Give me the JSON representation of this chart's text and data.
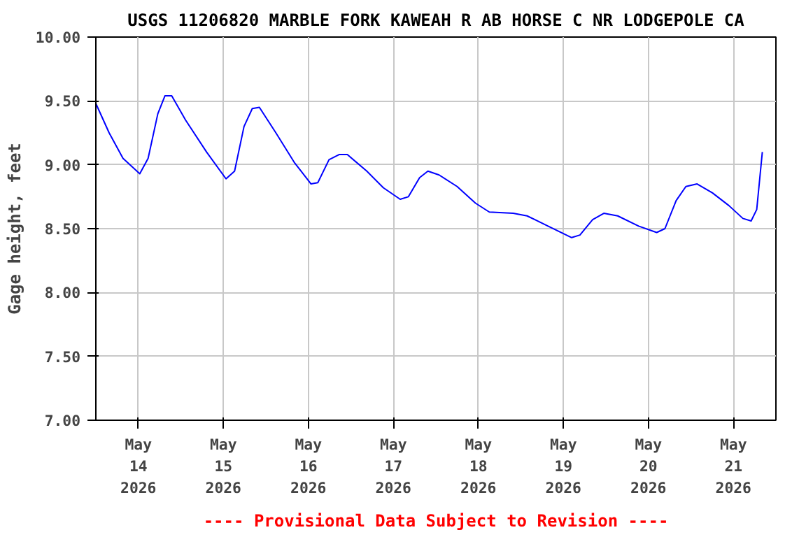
{
  "chart_data": {
    "type": "line",
    "title": "USGS 11206820 MARBLE FORK KAWEAH R AB HORSE C NR LODGEPOLE CA",
    "ylabel": "Gage height, feet",
    "annotations": [
      "---- Provisional Data Subject to Revision ----"
    ],
    "x": [
      "2026-05-13T12:00",
      "2026-05-13T15:45",
      "2026-05-13T19:40",
      "2026-05-14T00:24",
      "2026-05-14T02:45",
      "2026-05-14T05:30",
      "2026-05-14T07:30",
      "2026-05-14T09:25",
      "2026-05-14T13:20",
      "2026-05-14T19:15",
      "2026-05-15T00:45",
      "2026-05-15T03:10",
      "2026-05-15T05:50",
      "2026-05-15T08:10",
      "2026-05-15T10:10",
      "2026-05-15T14:50",
      "2026-05-15T20:00",
      "2026-05-16T00:45",
      "2026-05-16T02:40",
      "2026-05-16T05:50",
      "2026-05-16T08:40",
      "2026-05-16T11:00",
      "2026-05-16T16:30",
      "2026-05-16T21:10",
      "2026-05-17T01:55",
      "2026-05-17T04:15",
      "2026-05-17T07:25",
      "2026-05-17T09:45",
      "2026-05-17T12:55",
      "2026-05-17T18:00",
      "2026-05-17T23:10",
      "2026-05-18T03:05",
      "2026-05-18T09:50",
      "2026-05-18T13:45",
      "2026-05-18T19:40",
      "2026-05-19T02:20",
      "2026-05-19T04:40",
      "2026-05-19T08:15",
      "2026-05-19T11:25",
      "2026-05-19T15:20",
      "2026-05-19T21:15",
      "2026-05-20T02:20",
      "2026-05-20T04:40",
      "2026-05-20T07:50",
      "2026-05-20T10:35",
      "2026-05-20T13:45",
      "2026-05-20T18:05",
      "2026-05-20T22:45",
      "2026-05-21T02:40",
      "2026-05-21T05:00",
      "2026-05-21T06:35",
      "2026-05-21T08:10"
    ],
    "series": [
      {
        "color": "#0000ff",
        "values": [
          9.48,
          9.25,
          9.05,
          8.93,
          9.05,
          9.4,
          9.54,
          9.54,
          9.35,
          9.1,
          8.89,
          8.95,
          9.3,
          9.44,
          9.45,
          9.25,
          9.02,
          8.85,
          8.86,
          9.04,
          9.08,
          9.08,
          8.95,
          8.82,
          8.73,
          8.75,
          8.9,
          8.95,
          8.92,
          8.83,
          8.7,
          8.63,
          8.62,
          8.6,
          8.52,
          8.43,
          8.45,
          8.57,
          8.62,
          8.6,
          8.52,
          8.47,
          8.5,
          8.72,
          8.83,
          8.85,
          8.78,
          8.68,
          8.58,
          8.56,
          8.65,
          9.1
        ]
      }
    ],
    "xlim": [
      "2026-05-13T12:00",
      "2026-05-21T12:00"
    ],
    "xticks": [
      {
        "value": "2026-05-14",
        "label": "May\n14\n2026"
      },
      {
        "value": "2026-05-15",
        "label": "May\n15\n2026"
      },
      {
        "value": "2026-05-16",
        "label": "May\n16\n2026"
      },
      {
        "value": "2026-05-17",
        "label": "May\n17\n2026"
      },
      {
        "value": "2026-05-18",
        "label": "May\n18\n2026"
      },
      {
        "value": "2026-05-19",
        "label": "May\n19\n2026"
      },
      {
        "value": "2026-05-20",
        "label": "May\n20\n2026"
      },
      {
        "value": "2026-05-21",
        "label": "May\n21\n2026"
      }
    ],
    "ylim": [
      7,
      10
    ],
    "yticks": [
      {
        "value": 7,
        "label": "7.00"
      },
      {
        "value": 7.5,
        "label": "7.50"
      },
      {
        "value": 8,
        "label": "8.00"
      },
      {
        "value": 8.5,
        "label": "8.50"
      },
      {
        "value": 9,
        "label": "9.00"
      },
      {
        "value": 9.5,
        "label": "9.50"
      },
      {
        "value": 10,
        "label": "10.00"
      }
    ],
    "grid": true
  }
}
